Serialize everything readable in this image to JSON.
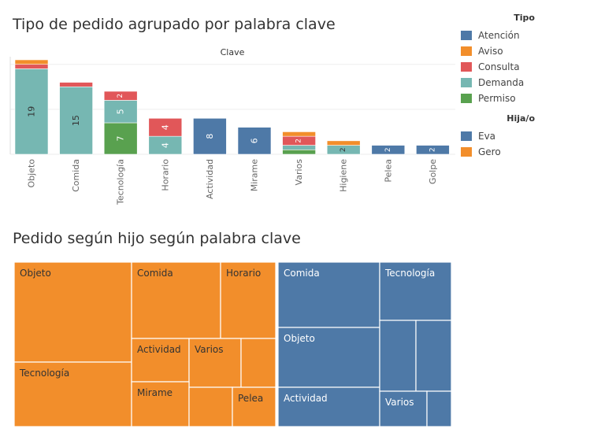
{
  "titles": {
    "bar_chart": "Tipo de pedido agrupado por palabra clave",
    "treemap": "Pedido según hijo según palabra clave"
  },
  "colors": {
    "Atención": "#4e79a7",
    "Aviso": "#f28e2b",
    "Consulta": "#e15759",
    "Demanda": "#76b7b2",
    "Permiso": "#59a14f",
    "Eva": "#4e79a7",
    "Gero": "#f28e2b"
  },
  "legend_tipo": {
    "title": "Tipo",
    "items": [
      "Atención",
      "Aviso",
      "Consulta",
      "Demanda",
      "Permiso"
    ]
  },
  "legend_hija": {
    "title": "Hija/o",
    "items": [
      "Eva",
      "Gero"
    ]
  },
  "chart_data": [
    {
      "type": "bar",
      "stacked": true,
      "title": "Tipo de pedido agrupado por palabra clave",
      "header": "Clave",
      "categories": [
        "Objeto",
        "Comida",
        "Tecnología",
        "Horario",
        "Actividad",
        "Mirame",
        "Varios",
        "Higiene",
        "Pelea",
        "Golpe"
      ],
      "series": [
        {
          "name": "Permiso",
          "values": [
            0,
            0,
            7,
            0,
            0,
            0,
            1,
            0,
            0,
            0
          ]
        },
        {
          "name": "Demanda",
          "values": [
            19,
            15,
            5,
            4,
            0,
            0,
            1,
            2,
            0,
            0
          ]
        },
        {
          "name": "Atención",
          "values": [
            0,
            0,
            0,
            0,
            8,
            6,
            0,
            0,
            2,
            2
          ]
        },
        {
          "name": "Consulta",
          "values": [
            1,
            1,
            2,
            4,
            0,
            0,
            2,
            0,
            0,
            0
          ]
        },
        {
          "name": "Aviso",
          "values": [
            1,
            0,
            0,
            0,
            0,
            0,
            1,
            1,
            0,
            0
          ]
        }
      ],
      "labels": [
        {
          "category": "Objeto",
          "series": "Demanda",
          "text": "19"
        },
        {
          "category": "Objeto",
          "series": "Consulta",
          "text": "1"
        },
        {
          "category": "Comida",
          "series": "Demanda",
          "text": "15"
        },
        {
          "category": "Tecnología",
          "series": "Permiso",
          "text": "7"
        },
        {
          "category": "Tecnología",
          "series": "Demanda",
          "text": "5"
        },
        {
          "category": "Tecnología",
          "series": "Consulta",
          "text": "2"
        },
        {
          "category": "Horario",
          "series": "Demanda",
          "text": "4"
        },
        {
          "category": "Horario",
          "series": "Consulta",
          "text": "4"
        },
        {
          "category": "Actividad",
          "series": "Atención",
          "text": "8"
        },
        {
          "category": "Mirame",
          "series": "Atención",
          "text": "6"
        },
        {
          "category": "Varios",
          "series": "Consulta",
          "text": "2"
        },
        {
          "category": "Higiene",
          "series": "Demanda",
          "text": "2"
        },
        {
          "category": "Pelea",
          "series": "Atención",
          "text": "2"
        },
        {
          "category": "Golpe",
          "series": "Atención",
          "text": "2"
        }
      ],
      "ylim": [
        0,
        21
      ],
      "grid": true,
      "legend_position": "right"
    },
    {
      "type": "treemap",
      "title": "Pedido según hijo según palabra clave",
      "groups": [
        {
          "name": "Gero",
          "items": [
            {
              "label": "Objeto",
              "value": 21
            },
            {
              "label": "Tecnología",
              "value": 14
            },
            {
              "label": "Comida",
              "value": 12
            },
            {
              "label": "Horario",
              "value": 9
            },
            {
              "label": "Actividad",
              "value": 4
            },
            {
              "label": "Varios",
              "value": 5
            },
            {
              "label": "",
              "value": 2
            },
            {
              "label": "Mirame",
              "value": 4
            },
            {
              "label": "",
              "value": 2
            },
            {
              "label": "Pelea",
              "value": 2
            }
          ]
        },
        {
          "name": "Eva",
          "items": [
            {
              "label": "Comida",
              "value": 6
            },
            {
              "label": "Objeto",
              "value": 5
            },
            {
              "label": "Actividad",
              "value": 3
            },
            {
              "label": "Tecnología",
              "value": 3
            },
            {
              "label": "",
              "value": 2
            },
            {
              "label": "",
              "value": 2
            },
            {
              "label": "Varios",
              "value": 2
            },
            {
              "label": "",
              "value": 1
            }
          ]
        }
      ]
    }
  ]
}
